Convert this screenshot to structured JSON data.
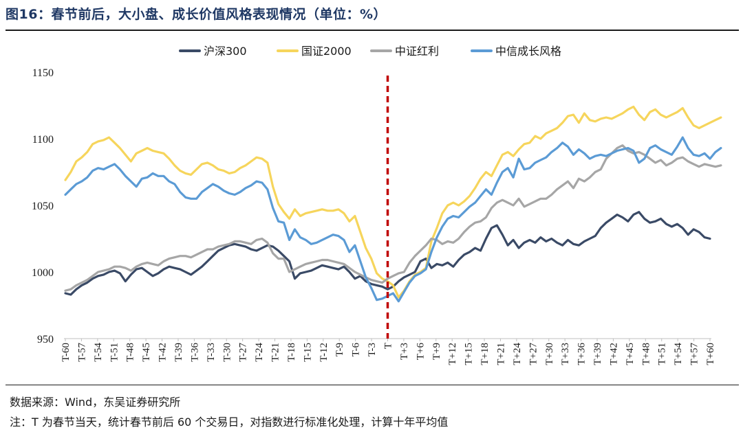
{
  "header": {
    "title": "图16：春节前后，大小盘、成长价值风格表现情况（单位：%）"
  },
  "footer": {
    "source": "数据来源：Wind，东吴证券研究所",
    "note": "注：T 为春节当天，统计春节前后 60 个交易日，对指数进行标准化处理，计算十年平均值"
  },
  "colors": {
    "hs300": "#3a4a66",
    "gz2000": "#f6d55c",
    "zzhl": "#a6a6a6",
    "zxcz": "#5b9bd5",
    "marker": "#c00000"
  },
  "chart_data": {
    "type": "line",
    "title": "",
    "xlabel": "",
    "ylabel": "",
    "ylim": [
      950,
      1150
    ],
    "yticks": [
      "950",
      "1000",
      "1050",
      "1100",
      "1150"
    ],
    "xlabels": [
      "T-60",
      "T-57",
      "T-54",
      "T-51",
      "T-48",
      "T-45",
      "T-42",
      "T-39",
      "T-36",
      "T-33",
      "T-30",
      "T-27",
      "T-24",
      "T-21",
      "T-18",
      "T-15",
      "T-12",
      "T-9",
      "T-6",
      "T-3",
      "T",
      "T+3",
      "T+6",
      "T+9",
      "T+12",
      "T+15",
      "T+18",
      "T+21",
      "T+24",
      "T+27",
      "T+30",
      "T+33",
      "T+36",
      "T+39",
      "T+42",
      "T+45",
      "T+48",
      "T+51",
      "T+54",
      "T+57",
      "T+60"
    ],
    "vertical_marker": "T",
    "series": [
      {
        "name": "沪深300",
        "values": [
          984,
          983,
          987,
          990,
          992,
          995,
          997,
          998,
          1000,
          1001,
          999,
          993,
          998,
          1002,
          1003,
          1000,
          997,
          999,
          1002,
          1004,
          1003,
          1002,
          1000,
          998,
          1001,
          1004,
          1008,
          1012,
          1016,
          1018,
          1020,
          1021,
          1020,
          1019,
          1017,
          1016,
          1018,
          1020,
          1019,
          1016,
          1012,
          1008,
          995,
          999,
          1000,
          1001,
          1003,
          1005,
          1004,
          1003,
          1002,
          1004,
          1000,
          995,
          997,
          993,
          991,
          990,
          989,
          987,
          989,
          993,
          996,
          998,
          1000,
          1008,
          1010,
          1003,
          1006,
          1005,
          1007,
          1004,
          1009,
          1013,
          1015,
          1018,
          1016,
          1025,
          1033,
          1035,
          1028,
          1020,
          1024,
          1018,
          1022,
          1024,
          1022,
          1026,
          1023,
          1025,
          1022,
          1020,
          1024,
          1021,
          1020,
          1023,
          1025,
          1027,
          1033,
          1037,
          1040,
          1043,
          1041,
          1038,
          1043,
          1045,
          1040,
          1037,
          1038,
          1040,
          1036,
          1034,
          1036,
          1033,
          1028,
          1032,
          1030,
          1026,
          1025
        ],
        "color_key": "hs300"
      },
      {
        "name": "国证2000",
        "values": [
          1069,
          1075,
          1083,
          1086,
          1090,
          1096,
          1098,
          1099,
          1101,
          1097,
          1093,
          1088,
          1083,
          1089,
          1091,
          1093,
          1091,
          1090,
          1089,
          1085,
          1080,
          1076,
          1074,
          1073,
          1077,
          1081,
          1082,
          1080,
          1077,
          1076,
          1074,
          1075,
          1078,
          1080,
          1083,
          1086,
          1085,
          1082,
          1064,
          1051,
          1045,
          1040,
          1047,
          1042,
          1044,
          1045,
          1046,
          1047,
          1046,
          1046,
          1047,
          1044,
          1038,
          1042,
          1030,
          1018,
          1010,
          999,
          995,
          993,
          990,
          981,
          986,
          993,
          998,
          1000,
          1003,
          1023,
          1033,
          1044,
          1050,
          1052,
          1050,
          1053,
          1057,
          1063,
          1070,
          1075,
          1072,
          1080,
          1088,
          1090,
          1087,
          1092,
          1096,
          1097,
          1102,
          1100,
          1104,
          1106,
          1108,
          1112,
          1117,
          1118,
          1112,
          1119,
          1114,
          1113,
          1115,
          1116,
          1115,
          1117,
          1119,
          1122,
          1124,
          1118,
          1114,
          1120,
          1122,
          1118,
          1116,
          1118,
          1120,
          1123,
          1116,
          1110,
          1108,
          1110,
          1112,
          1114,
          1116
        ],
        "color_key": "gz2000"
      },
      {
        "name": "中证红利",
        "values": [
          986,
          987,
          990,
          992,
          994,
          997,
          1000,
          1001,
          1002,
          1004,
          1004,
          1003,
          1001,
          1004,
          1006,
          1007,
          1006,
          1005,
          1008,
          1010,
          1011,
          1012,
          1012,
          1011,
          1013,
          1015,
          1017,
          1017,
          1019,
          1020,
          1021,
          1023,
          1023,
          1022,
          1021,
          1024,
          1025,
          1022,
          1014,
          1010,
          1010,
          1000,
          1002,
          1004,
          1006,
          1007,
          1008,
          1009,
          1009,
          1008,
          1007,
          1006,
          1003,
          1000,
          998,
          996,
          994,
          993,
          992,
          995,
          997,
          999,
          1000,
          1007,
          1012,
          1016,
          1020,
          1025,
          1024,
          1021,
          1023,
          1022,
          1025,
          1030,
          1034,
          1037,
          1038,
          1041,
          1048,
          1052,
          1054,
          1052,
          1050,
          1055,
          1049,
          1051,
          1053,
          1055,
          1055,
          1058,
          1062,
          1065,
          1068,
          1063,
          1070,
          1068,
          1071,
          1075,
          1077,
          1085,
          1089,
          1093,
          1095,
          1091,
          1089,
          1090,
          1088,
          1085,
          1082,
          1084,
          1080,
          1082,
          1085,
          1086,
          1083,
          1081,
          1079,
          1081,
          1080,
          1079,
          1080
        ],
        "color_key": "zzhl"
      },
      {
        "name": "中信成长风格",
        "values": [
          1058,
          1062,
          1066,
          1068,
          1071,
          1076,
          1078,
          1077,
          1079,
          1081,
          1077,
          1072,
          1068,
          1064,
          1070,
          1071,
          1074,
          1072,
          1072,
          1068,
          1066,
          1060,
          1056,
          1055,
          1055,
          1060,
          1063,
          1066,
          1064,
          1061,
          1059,
          1058,
          1060,
          1063,
          1065,
          1068,
          1067,
          1062,
          1048,
          1038,
          1037,
          1024,
          1032,
          1026,
          1024,
          1021,
          1022,
          1024,
          1026,
          1028,
          1027,
          1024,
          1015,
          1020,
          1008,
          996,
          988,
          979,
          980,
          982,
          984,
          978,
          985,
          992,
          997,
          999,
          1002,
          1015,
          1026,
          1034,
          1040,
          1042,
          1041,
          1045,
          1049,
          1052,
          1057,
          1062,
          1058,
          1067,
          1075,
          1078,
          1071,
          1085,
          1077,
          1078,
          1082,
          1084,
          1086,
          1090,
          1093,
          1097,
          1094,
          1088,
          1092,
          1089,
          1085,
          1087,
          1088,
          1087,
          1089,
          1091,
          1092,
          1093,
          1091,
          1082,
          1085,
          1093,
          1095,
          1092,
          1090,
          1088,
          1094,
          1101,
          1093,
          1088,
          1087,
          1089,
          1085,
          1090,
          1093
        ],
        "color_key": "zxcz"
      }
    ]
  }
}
